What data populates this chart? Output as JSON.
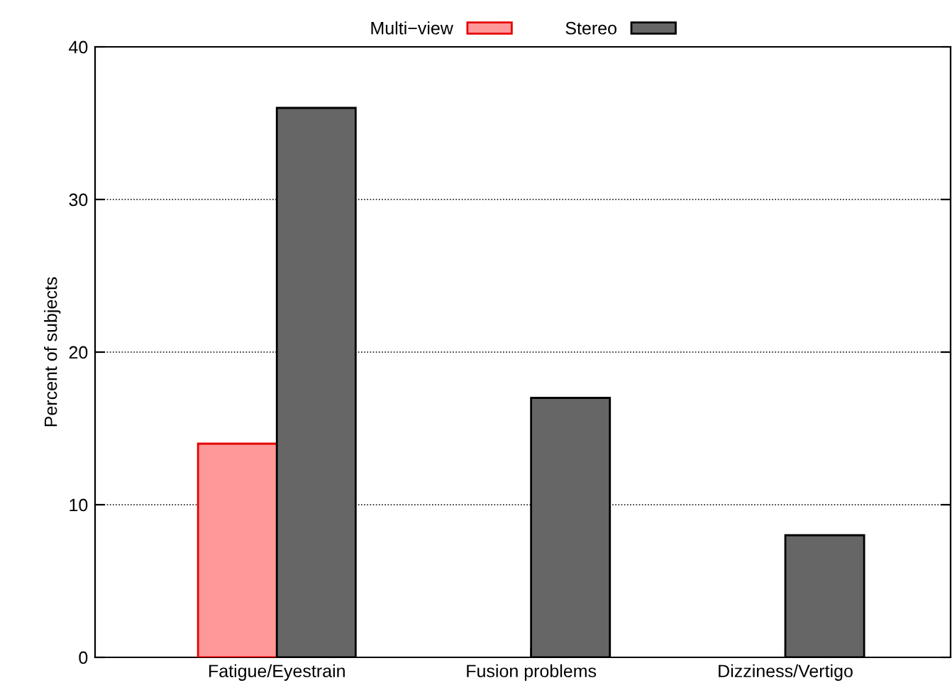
{
  "chart_data": {
    "type": "bar",
    "ylabel": "Percent of subjects",
    "categories": [
      "Fatigue/Eyestrain",
      "Fusion problems",
      "Dizziness/Vertigo"
    ],
    "series": [
      {
        "name": "Multi−view",
        "color": "#ff9999",
        "values": [
          14,
          0,
          0
        ]
      },
      {
        "name": "Stereo",
        "color": "#666666",
        "values": [
          36,
          17,
          8
        ]
      }
    ],
    "ylim": [
      0,
      40
    ],
    "yticks": [
      0,
      10,
      20,
      30,
      40
    ],
    "grid": "y",
    "legend": "top"
  }
}
